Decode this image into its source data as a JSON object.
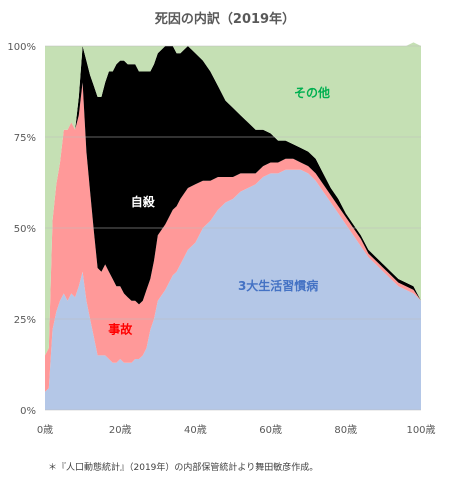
{
  "chart_data": {
    "type": "area",
    "title": "死因の内訳（2019年）",
    "x_tick_labels": [
      "0歳",
      "20歳",
      "40歳",
      "60歳",
      "80歳",
      "100歳"
    ],
    "x_ticks": [
      0,
      20,
      40,
      60,
      80,
      100
    ],
    "y_tick_labels": [
      "0%",
      "25%",
      "50%",
      "75%",
      "100%"
    ],
    "y_ticks": [
      0,
      25,
      50,
      75,
      100
    ],
    "xlim": [
      0,
      100
    ],
    "ylim": [
      0,
      100
    ],
    "grid": true,
    "note": "＊『人口動態統計』（2019年）の内部保管統計より舞田敏彦作成。",
    "x": [
      0,
      1,
      2,
      3,
      4,
      5,
      6,
      7,
      8,
      9,
      10,
      11,
      12,
      13,
      14,
      15,
      16,
      17,
      18,
      19,
      20,
      21,
      22,
      23,
      24,
      25,
      26,
      27,
      28,
      29,
      30,
      32,
      34,
      35,
      36,
      38,
      40,
      42,
      44,
      46,
      48,
      50,
      52,
      54,
      56,
      58,
      60,
      62,
      64,
      66,
      68,
      70,
      72,
      74,
      76,
      78,
      80,
      82,
      84,
      86,
      88,
      90,
      92,
      94,
      96,
      98,
      100
    ],
    "series": [
      {
        "name": "3大生活習慣病",
        "color": "#b4c7e7",
        "label_color": "#4472c4",
        "values": [
          5,
          6,
          22,
          27,
          30,
          32,
          30,
          32,
          31,
          34,
          38,
          30,
          25,
          20,
          15,
          15,
          15,
          14,
          13,
          13,
          14,
          13,
          13,
          13,
          14,
          14,
          15,
          17,
          22,
          25,
          30,
          33,
          37,
          38,
          40,
          44,
          46,
          50,
          52,
          55,
          57,
          58,
          60,
          61,
          62,
          64,
          65,
          65,
          66,
          66,
          66,
          65,
          63,
          60,
          57,
          54,
          51,
          48,
          45,
          42,
          40,
          38,
          36,
          34,
          33,
          32,
          30
        ]
      },
      {
        "name": "事故",
        "color": "#ff9999",
        "label_color": "#ff0000",
        "values": [
          10,
          11,
          30,
          35,
          38,
          45,
          47,
          47,
          46,
          47,
          52,
          41,
          35,
          29,
          24,
          23,
          25,
          24,
          23,
          21,
          20,
          19,
          18,
          17,
          16,
          15,
          15,
          16,
          14,
          16,
          18,
          18,
          18,
          18,
          18,
          17,
          16,
          13,
          11,
          9,
          7,
          6,
          5,
          4,
          3,
          3,
          3,
          3,
          3,
          3,
          2,
          2,
          2,
          2,
          2,
          2,
          2,
          2,
          2,
          1,
          1,
          1,
          1,
          1,
          1,
          1,
          0
        ]
      },
      {
        "name": "自殺",
        "color": "#000000",
        "label_color": "#ffffff",
        "values": [
          0,
          0,
          0,
          0,
          0,
          0,
          0,
          0,
          0,
          5,
          10,
          25,
          32,
          40,
          47,
          48,
          50,
          55,
          57,
          61,
          62,
          64,
          64,
          65,
          65,
          64,
          63,
          60,
          57,
          54,
          50,
          49,
          45,
          42,
          40,
          39,
          36,
          33,
          30,
          25,
          21,
          19,
          16,
          14,
          12,
          10,
          8,
          6,
          5,
          4,
          4,
          4,
          4,
          3,
          2,
          2,
          1,
          1,
          1,
          1,
          1,
          1,
          1,
          1,
          1,
          1,
          0
        ]
      },
      {
        "name": "その他",
        "color": "#c5e0b4",
        "label_color": "#00b050",
        "values": [
          85,
          83,
          48,
          38,
          32,
          23,
          23,
          21,
          23,
          14,
          0,
          4,
          8,
          11,
          14,
          14,
          10,
          7,
          7,
          5,
          4,
          4,
          5,
          5,
          5,
          7,
          7,
          7,
          7,
          5,
          2,
          0,
          0,
          2,
          2,
          0,
          2,
          4,
          7,
          11,
          15,
          17,
          19,
          21,
          23,
          23,
          24,
          26,
          26,
          27,
          28,
          29,
          31,
          35,
          39,
          42,
          46,
          49,
          52,
          56,
          58,
          60,
          62,
          64,
          65,
          67,
          70
        ]
      }
    ],
    "labels": [
      {
        "text": "その他",
        "x": 71,
        "y": 86
      },
      {
        "text": "自殺",
        "x": 26,
        "y": 56
      },
      {
        "text": "3大生活習慣病",
        "x": 62,
        "y": 33
      },
      {
        "text": "事故",
        "x": 20,
        "y": 21
      }
    ]
  }
}
